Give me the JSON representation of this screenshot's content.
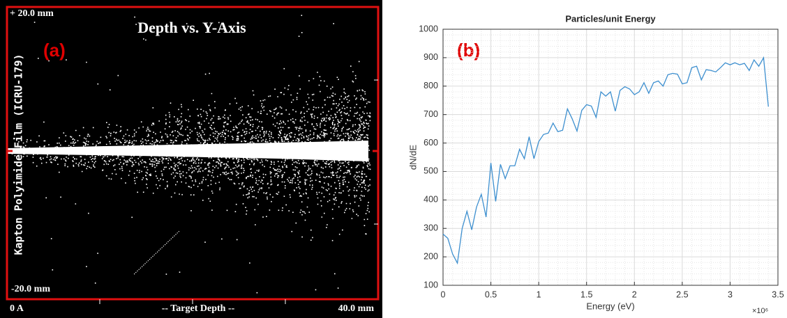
{
  "panel_a": {
    "label": "(a)",
    "title": "Depth vs. Y-Axis",
    "y_top_label": "+ 20.0 mm",
    "y_bottom_label": "-20.0 mm",
    "y_axis_label": "Kapton Polyimide Film (ICRU-179)",
    "x_left_label": "0 A",
    "x_axis_label": "-- Target Depth --",
    "x_right_label": "40.0 mm"
  },
  "chart_data": {
    "type": "line",
    "title": "Particles/unit Energy",
    "panel_label": "(b)",
    "x_label": "Energy (eV)",
    "y_label": "dN/dE",
    "x_multiplier_label": "×10⁶",
    "x": [
      0,
      0.05,
      0.1,
      0.15,
      0.2,
      0.25,
      0.3,
      0.35,
      0.4,
      0.45,
      0.5,
      0.55,
      0.6,
      0.65,
      0.7,
      0.75,
      0.8,
      0.85,
      0.9,
      0.95,
      1.0,
      1.05,
      1.1,
      1.15,
      1.2,
      1.25,
      1.3,
      1.35,
      1.4,
      1.45,
      1.5,
      1.55,
      1.6,
      1.65,
      1.7,
      1.75,
      1.8,
      1.85,
      1.9,
      1.95,
      2.0,
      2.05,
      2.1,
      2.15,
      2.2,
      2.25,
      2.3,
      2.35,
      2.4,
      2.45,
      2.5,
      2.55,
      2.6,
      2.65,
      2.7,
      2.75,
      2.8,
      2.85,
      2.9,
      2.95,
      3.0,
      3.05,
      3.1,
      3.15,
      3.2,
      3.25,
      3.3,
      3.35,
      3.4
    ],
    "series": [
      {
        "color": "#3d8fcf",
        "values": [
          280,
          265,
          210,
          178,
          300,
          360,
          295,
          375,
          420,
          340,
          530,
          395,
          525,
          475,
          520,
          520,
          578,
          545,
          622,
          545,
          605,
          630,
          635,
          670,
          640,
          645,
          720,
          685,
          642,
          715,
          735,
          730,
          690,
          780,
          765,
          780,
          712,
          785,
          798,
          790,
          770,
          780,
          812,
          775,
          812,
          818,
          800,
          840,
          845,
          842,
          808,
          812,
          865,
          870,
          822,
          858,
          855,
          850,
          865,
          882,
          875,
          882,
          875,
          880,
          855,
          892,
          870,
          900,
          728
        ]
      }
    ],
    "xlim": [
      0,
      3.5
    ],
    "xticks": [
      0,
      0.5,
      1,
      1.5,
      2,
      2.5,
      3,
      3.5
    ],
    "ylim": [
      100,
      1000
    ],
    "yticks": [
      100,
      200,
      300,
      400,
      500,
      600,
      700,
      800,
      900,
      1000
    ],
    "grid": true,
    "minor_grid": true
  }
}
